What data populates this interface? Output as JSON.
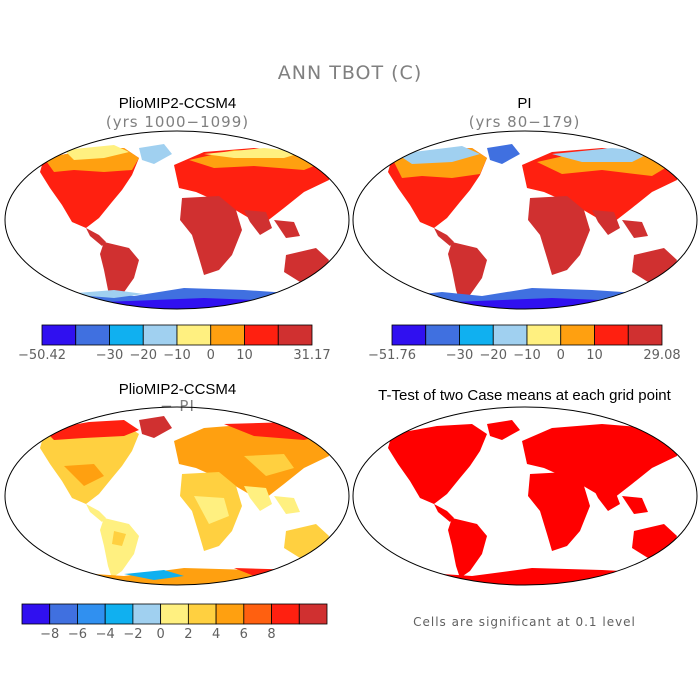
{
  "figure": {
    "title": "ANN TBOT (C)"
  },
  "panels": {
    "p1": {
      "title": "PlioMIP2-CCSM4",
      "subtitle": "(yrs 1000−1099)"
    },
    "p2": {
      "title": "PI",
      "subtitle": "(yrs 80−179)"
    },
    "p3": {
      "title": "PlioMIP2-CCSM4",
      "subtitle": "− PI"
    },
    "p4": {
      "title": "T-Test of two Case means at each grid point",
      "note": "Cells are significant at 0.1 level"
    }
  },
  "colorbars": {
    "cb1": {
      "colors": [
        "#3010f0",
        "#4070e0",
        "#10b0f0",
        "#a0d0f0",
        "#fff080",
        "#ffa010",
        "#ff2010",
        "#d03030"
      ],
      "labels": [
        "−50.42",
        "−30",
        "−20",
        "−10",
        "0",
        "10",
        "31.17"
      ],
      "label_positions": [
        0,
        2,
        3,
        4,
        5,
        6,
        8
      ]
    },
    "cb2": {
      "colors": [
        "#3010f0",
        "#4070e0",
        "#10b0f0",
        "#a0d0f0",
        "#fff080",
        "#ffa010",
        "#ff2010",
        "#d03030"
      ],
      "labels": [
        "−51.76",
        "−30",
        "−20",
        "−10",
        "0",
        "10",
        "29.08"
      ],
      "label_positions": [
        0,
        2,
        3,
        4,
        5,
        6,
        8
      ]
    },
    "cb3": {
      "colors": [
        "#3010f0",
        "#4070e0",
        "#3090f0",
        "#10b0f0",
        "#a0d0f0",
        "#fff080",
        "#ffd040",
        "#ffa010",
        "#ff6010",
        "#ff2010",
        "#d03030"
      ],
      "labels": [
        "−8",
        "−6",
        "−4",
        "−2",
        "0",
        "2",
        "4",
        "6",
        "8"
      ],
      "label_positions": [
        1,
        2,
        3,
        4,
        5,
        6,
        7,
        8,
        9
      ]
    }
  }
}
